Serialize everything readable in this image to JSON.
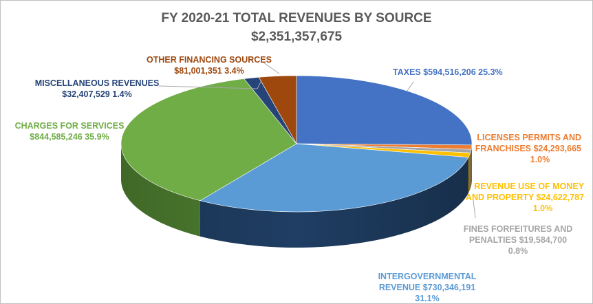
{
  "chart_data": {
    "type": "pie",
    "title": "FY 2020-21 TOTAL REVENUES BY SOURCE",
    "subtitle": "$2,351,357,675",
    "legend": "none",
    "slices": [
      {
        "label_lines": [
          "TAXES  $594,516,206  25.3%"
        ],
        "value": 594516206,
        "percent": 25.3,
        "color": "#4472C4",
        "side_color": "#2F5597",
        "label_color": "#4472C4"
      },
      {
        "label_lines": [
          "LICENSES PERMITS AND",
          "FRANCHISES  $24,293,665",
          "1.0%"
        ],
        "value": 24293665,
        "percent": 1.0,
        "color": "#ED7D31",
        "side_color": "#B85A1E",
        "label_color": "#ED7D31"
      },
      {
        "label_lines": [
          "FINES FORFEITURES AND",
          "PENALTIES  $19,584,700",
          "0.8%"
        ],
        "value": 19584700,
        "percent": 0.8,
        "color": "#A5A5A5",
        "side_color": "#7B7B7B",
        "label_color": "#A5A5A5"
      },
      {
        "label_lines": [
          "REVENUE USE OF MONEY",
          "AND PROPERTY  $24,622,787",
          "1.0%"
        ],
        "value": 24622787,
        "percent": 1.0,
        "color": "#FFC000",
        "side_color": "#C99700",
        "label_color": "#FFC000"
      },
      {
        "label_lines": [
          "INTERGOVERNMENTAL",
          "REVENUE  $730,346,191",
          "31.1%"
        ],
        "value": 730346191,
        "percent": 31.1,
        "color": "#5B9BD5",
        "side_color": "#1F3E63",
        "label_color": "#5B9BD5"
      },
      {
        "label_lines": [
          "CHARGES FOR SERVICES",
          "$844,585,246  35.9%"
        ],
        "value": 844585246,
        "percent": 35.9,
        "color": "#70AD47",
        "side_color": "#4E7F30",
        "label_color": "#70AD47"
      },
      {
        "label_lines": [
          "MISCELLANEOUS REVENUES",
          "$32,407,529  1.4%"
        ],
        "value": 32407529,
        "percent": 1.4,
        "color": "#264478",
        "side_color": "#17294A",
        "label_color": "#264478"
      },
      {
        "label_lines": [
          "OTHER FINANCING SOURCES",
          "$81,001,351  3.4%"
        ],
        "value": 81001351,
        "percent": 3.4,
        "color": "#9E480E",
        "side_color": "#6B3009",
        "label_color": "#9E480E"
      }
    ]
  }
}
